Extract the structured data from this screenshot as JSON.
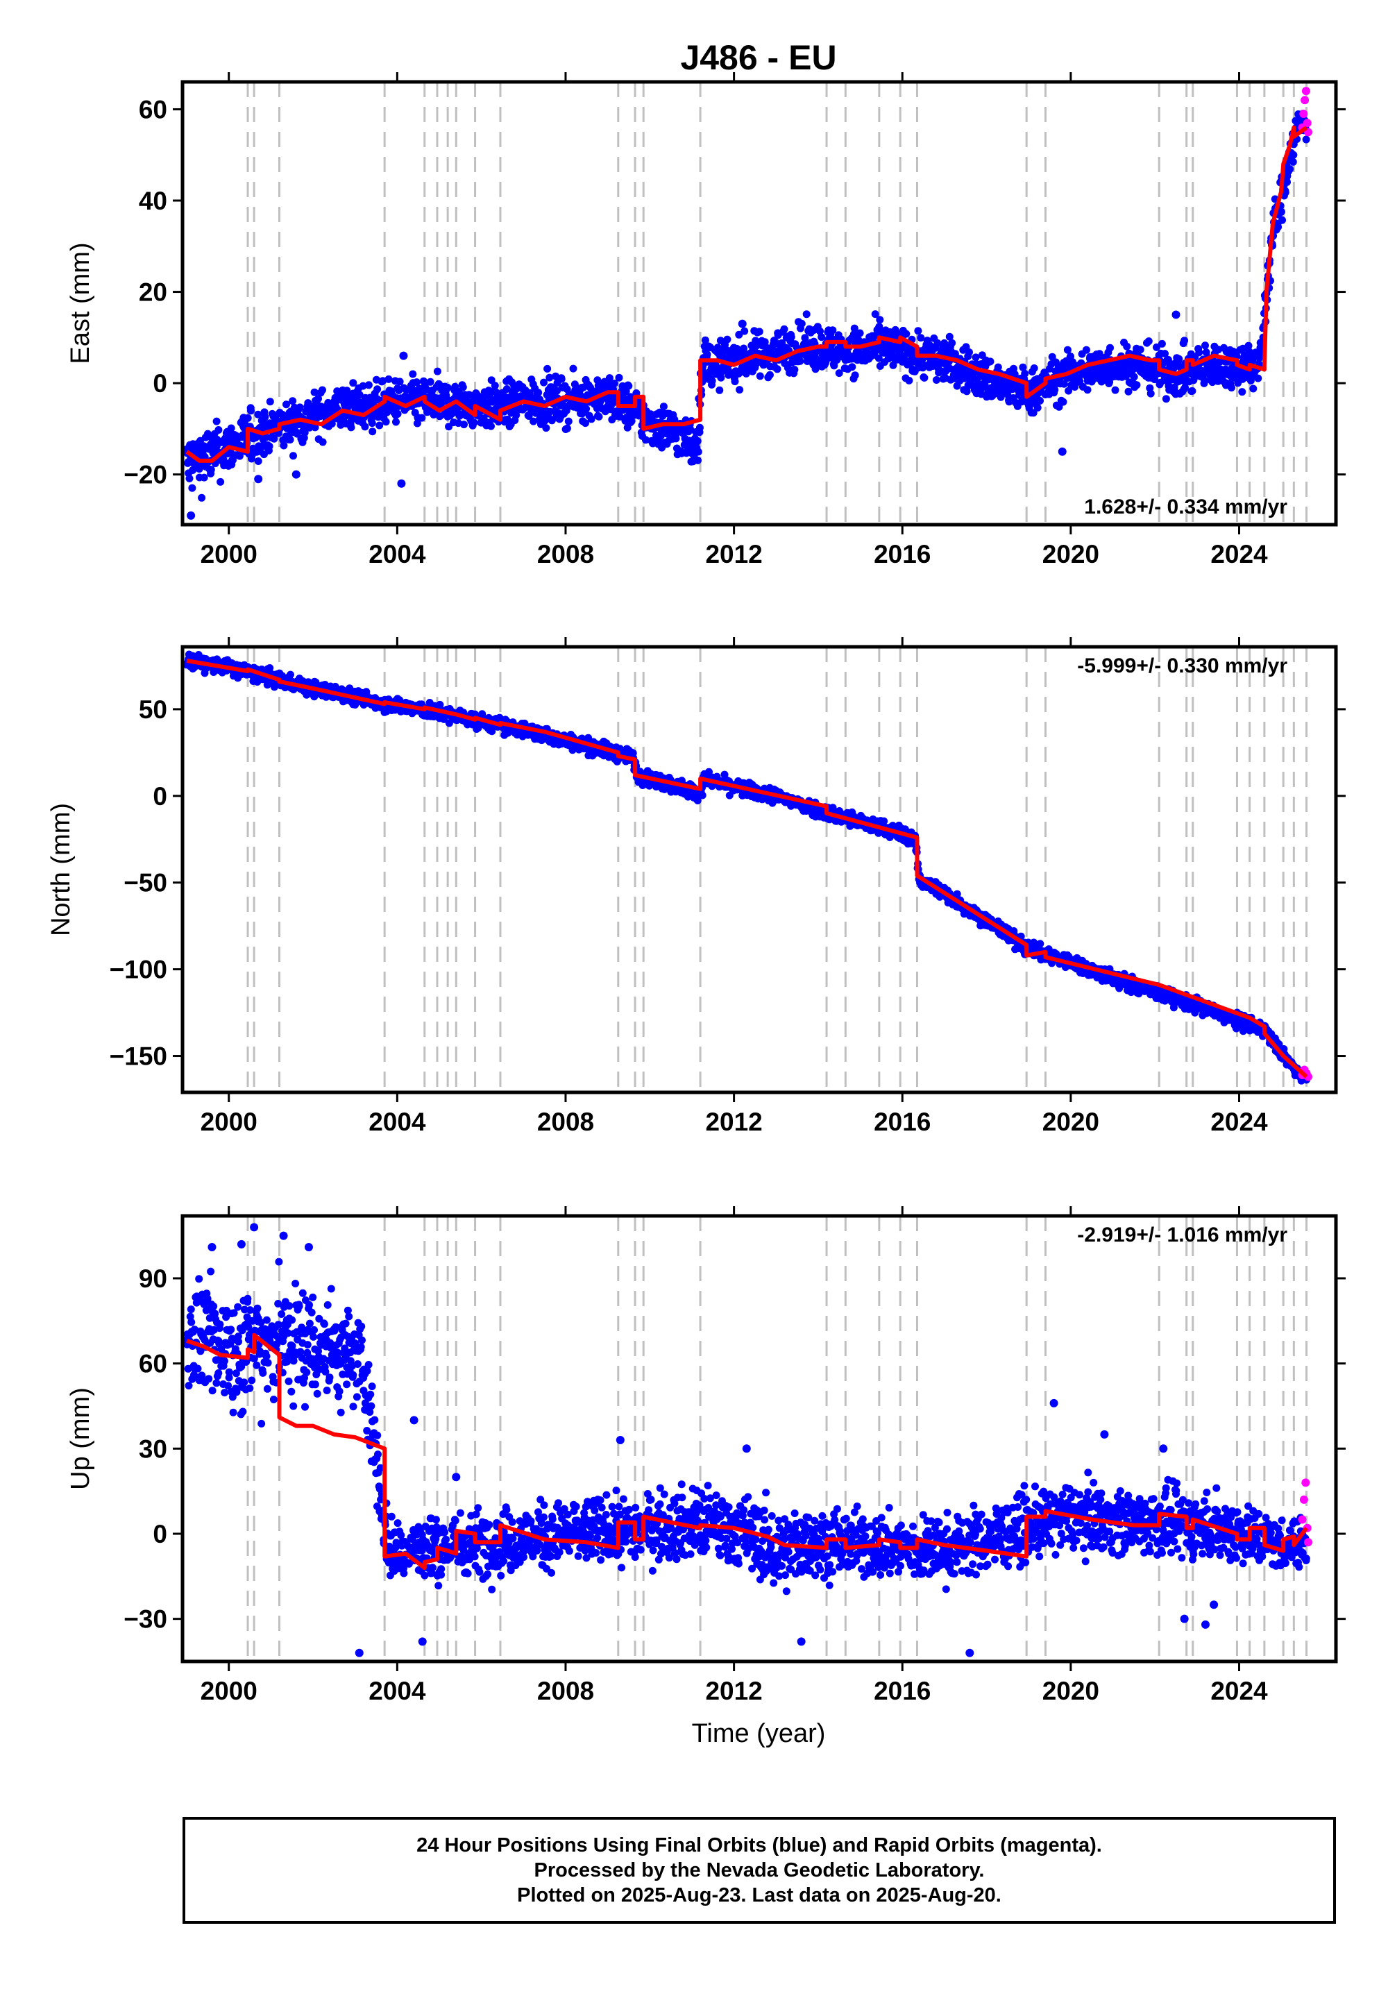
{
  "figure": {
    "title": "J486 - EU",
    "xlabel": "Time (year)",
    "caption": [
      "24 Hour Positions Using Final Orbits (blue) and Rapid Orbits (magenta).",
      "Processed by the Nevada Geodetic Laboratory.",
      "Plotted on 2025-Aug-23. Last data on 2025-Aug-20."
    ]
  },
  "colors": {
    "final": "#0000ff",
    "rapid": "#ff00ff",
    "model": "#ff0000",
    "event_lines": "#c0c0c0",
    "axes": "#000000"
  },
  "chart_data": [
    {
      "type": "scatter",
      "ylabel": "East (mm)",
      "rate_text": "1.628+/- 0.334 mm/yr",
      "rate_position": "bottom-right",
      "xlim": [
        1998.9,
        2026.3
      ],
      "ylim": [
        -31,
        66
      ],
      "x_ticks": [
        2000,
        2004,
        2008,
        2012,
        2016,
        2020,
        2024
      ],
      "y_ticks": [
        -20,
        0,
        20,
        40,
        60
      ],
      "event_years": [
        2000.45,
        2000.6,
        2001.2,
        2003.7,
        2004.65,
        2004.95,
        2005.2,
        2005.4,
        2005.85,
        2006.45,
        2009.25,
        2009.65,
        2009.85,
        2011.2,
        2014.2,
        2014.65,
        2015.45,
        2015.95,
        2016.35,
        2018.95,
        2019.4,
        2022.1,
        2022.75,
        2022.9,
        2023.95,
        2024.25,
        2024.6,
        2025.05,
        2025.3,
        2025.6
      ],
      "trend_series": {
        "name": "Final Orbits (blue)",
        "x": [
          1999.0,
          1999.5,
          2000.0,
          2000.5,
          2001.0,
          2001.5,
          2002.0,
          2002.5,
          2003.0,
          2003.5,
          2004.0,
          2004.5,
          2005.0,
          2005.5,
          2006.0,
          2006.5,
          2007.0,
          2007.5,
          2008.0,
          2008.5,
          2009.0,
          2009.5,
          2010.0,
          2010.5,
          2011.0,
          2011.15,
          2011.25,
          2011.5,
          2012.0,
          2012.5,
          2013.0,
          2013.5,
          2014.0,
          2014.5,
          2015.0,
          2015.5,
          2016.0,
          2016.5,
          2017.0,
          2017.5,
          2018.0,
          2018.5,
          2019.0,
          2019.5,
          2020.0,
          2020.5,
          2021.0,
          2021.5,
          2022.0,
          2022.5,
          2023.0,
          2023.5,
          2024.0,
          2024.5,
          2024.65,
          2024.8,
          2025.0,
          2025.2,
          2025.4,
          2025.6
        ],
        "y": [
          -18,
          -16,
          -14,
          -12,
          -10,
          -9,
          -7,
          -6,
          -5,
          -5,
          -4,
          -4,
          -4,
          -5,
          -5,
          -5,
          -4,
          -4,
          -4,
          -3,
          -3,
          -5,
          -9,
          -10,
          -13,
          -12,
          5,
          4,
          5,
          6,
          7,
          8,
          8,
          7,
          7,
          8,
          7,
          6,
          5,
          3,
          1,
          -1,
          -2,
          0,
          2,
          3,
          4,
          4,
          3,
          2,
          3,
          4,
          4,
          4,
          20,
          33,
          40,
          50,
          56,
          57
        ],
        "spread": [
          5,
          4.5,
          4,
          4,
          3.5,
          3.5,
          3.5,
          3.5,
          3.5,
          3.5,
          3.5,
          3.5,
          3.5,
          3.5,
          3.5,
          3.5,
          3.5,
          3.5,
          3.5,
          3.5,
          3.5,
          3.5,
          3.5,
          3.5,
          4,
          4,
          3.5,
          3.5,
          3.5,
          3.5,
          3.5,
          3.5,
          3.5,
          3.5,
          3.5,
          3.5,
          3.5,
          3.5,
          3.5,
          3.5,
          3.5,
          3.5,
          3.5,
          3.5,
          3.5,
          3.5,
          3.5,
          3.5,
          3.5,
          3.5,
          3.5,
          3.5,
          3.5,
          3.5,
          4,
          4,
          3.5,
          3,
          3,
          3
        ]
      },
      "outliers": [
        [
          1999.1,
          -29
        ],
        [
          2000.7,
          -21
        ],
        [
          2001.6,
          -20
        ],
        [
          2004.1,
          -22
        ],
        [
          2004.15,
          6
        ],
        [
          2012.2,
          13
        ],
        [
          2019.8,
          -15
        ],
        [
          2022.5,
          15
        ]
      ],
      "rapid_series": {
        "name": "Rapid Orbits (magenta)",
        "x": [
          2025.5,
          2025.53,
          2025.56,
          2025.59,
          2025.62,
          2025.64
        ],
        "y": [
          56,
          59,
          62,
          64,
          57,
          55
        ]
      },
      "model": {
        "x": [
          1999.0,
          1999.3,
          1999.6,
          2000.0,
          2000.45,
          2000.45,
          2000.8,
          2001.2,
          2001.2,
          2001.7,
          2002.2,
          2002.7,
          2003.2,
          2003.7,
          2003.7,
          2004.2,
          2004.65,
          2004.65,
          2005.0,
          2005.4,
          2005.85,
          2005.85,
          2006.45,
          2006.45,
          2007.0,
          2007.5,
          2008.0,
          2008.5,
          2009.0,
          2009.25,
          2009.25,
          2009.65,
          2009.65,
          2009.85,
          2009.85,
          2010.3,
          2010.8,
          2011.2,
          2011.2,
          2011.6,
          2012.0,
          2012.5,
          2013.0,
          2013.5,
          2014.0,
          2014.2,
          2014.2,
          2014.65,
          2014.65,
          2015.0,
          2015.45,
          2015.45,
          2015.95,
          2015.95,
          2016.35,
          2016.35,
          2016.8,
          2017.3,
          2017.8,
          2018.3,
          2018.95,
          2018.95,
          2019.4,
          2019.4,
          2019.9,
          2020.4,
          2020.9,
          2021.4,
          2021.9,
          2022.1,
          2022.1,
          2022.5,
          2022.75,
          2022.75,
          2022.9,
          2022.9,
          2023.4,
          2023.95,
          2023.95,
          2024.25,
          2024.25,
          2024.6,
          2024.6,
          2024.65,
          2024.8,
          2025.0,
          2025.05,
          2025.2,
          2025.3,
          2025.3,
          2025.6
        ],
        "y": [
          -15,
          -17,
          -17,
          -14,
          -15,
          -10,
          -11,
          -10,
          -9,
          -8,
          -9,
          -6,
          -7,
          -4,
          -3,
          -5,
          -3,
          -4,
          -6,
          -4,
          -7,
          -5,
          -8,
          -6,
          -4,
          -5,
          -3,
          -4,
          -2,
          -2,
          -5,
          -5,
          -3,
          -3,
          -10,
          -9,
          -9,
          -8,
          5,
          5,
          4,
          6,
          5,
          7,
          8,
          8,
          9,
          9,
          8,
          8,
          9,
          10,
          9,
          10,
          8,
          6,
          6,
          5,
          3,
          2,
          0,
          -3,
          0,
          1,
          2,
          4,
          5,
          6,
          5,
          5,
          3,
          2,
          3,
          5,
          5,
          4,
          6,
          5,
          4,
          3,
          4,
          3,
          4,
          20,
          35,
          42,
          48,
          52,
          56,
          54,
          56
        ]
      }
    },
    {
      "type": "scatter",
      "ylabel": "North (mm)",
      "rate_text": "-5.999+/- 0.330 mm/yr",
      "rate_position": "top-right",
      "xlim": [
        1998.9,
        2026.3
      ],
      "ylim": [
        -171,
        86
      ],
      "x_ticks": [
        2000,
        2004,
        2008,
        2012,
        2016,
        2020,
        2024
      ],
      "y_ticks": [
        -150,
        -100,
        -50,
        0,
        50
      ],
      "event_years": [
        2000.45,
        2000.6,
        2001.2,
        2003.7,
        2004.65,
        2004.95,
        2005.2,
        2005.4,
        2005.85,
        2006.45,
        2009.25,
        2009.65,
        2009.85,
        2011.2,
        2014.2,
        2014.65,
        2015.45,
        2015.95,
        2016.35,
        2018.95,
        2019.4,
        2022.1,
        2022.75,
        2022.9,
        2023.95,
        2024.25,
        2024.6,
        2025.05,
        2025.3,
        2025.6
      ],
      "trend_series": {
        "name": "Final Orbits (blue)",
        "x": [
          1999.0,
          2000.0,
          2001.0,
          2002.0,
          2003.0,
          2004.0,
          2005.0,
          2006.0,
          2007.0,
          2008.0,
          2009.0,
          2009.6,
          2009.7,
          2011.0,
          2011.2,
          2011.3,
          2012.0,
          2013.0,
          2014.0,
          2015.0,
          2016.0,
          2016.3,
          2016.4,
          2017.0,
          2018.0,
          2019.0,
          2020.0,
          2021.0,
          2022.0,
          2023.0,
          2024.0,
          2024.6,
          2025.0,
          2025.4,
          2025.6
        ],
        "y": [
          78,
          74,
          68,
          62,
          57,
          52,
          48,
          43,
          38,
          32,
          26,
          22,
          12,
          3,
          2,
          10,
          5,
          0,
          -8,
          -15,
          -22,
          -25,
          -48,
          -56,
          -72,
          -88,
          -96,
          -105,
          -113,
          -121,
          -130,
          -135,
          -148,
          -160,
          -163
        ],
        "spread": [
          3,
          3,
          3,
          3,
          3,
          3,
          3,
          3,
          3,
          3,
          3,
          3,
          3,
          3,
          3,
          3,
          3,
          3,
          3,
          3,
          3,
          3,
          3,
          3,
          3,
          3,
          3,
          3,
          3,
          3,
          3,
          3,
          2.5,
          2,
          2
        ]
      },
      "outliers": [],
      "rapid_series": {
        "name": "Rapid Orbits (magenta)",
        "x": [
          2025.5,
          2025.55,
          2025.6,
          2025.64
        ],
        "y": [
          -161,
          -158,
          -160,
          -162
        ]
      },
      "model": {
        "x": [
          1999.0,
          2000.45,
          2000.45,
          2001.2,
          2001.2,
          2002.0,
          2003.7,
          2003.7,
          2004.65,
          2004.65,
          2005.4,
          2005.85,
          2005.85,
          2006.45,
          2006.45,
          2007.5,
          2009.25,
          2009.25,
          2009.65,
          2009.65,
          2011.2,
          2011.2,
          2014.2,
          2014.2,
          2016.35,
          2016.35,
          2018.95,
          2018.95,
          2019.4,
          2019.4,
          2022.1,
          2024.25,
          2024.6,
          2024.6,
          2025.05,
          2025.6
        ],
        "y": [
          78,
          72,
          73,
          67,
          66,
          62,
          53,
          54,
          50,
          51,
          47,
          44,
          45,
          41,
          42,
          37,
          25,
          23,
          21,
          12,
          4,
          10,
          -6,
          -10,
          -24,
          -46,
          -86,
          -92,
          -90,
          -93,
          -109,
          -128,
          -133,
          -137,
          -150,
          -162
        ]
      }
    },
    {
      "type": "scatter",
      "ylabel": "Up (mm)",
      "rate_text": "-2.919+/- 1.016 mm/yr",
      "rate_position": "top-right",
      "xlim": [
        1998.9,
        2026.3
      ],
      "ylim": [
        -45,
        112
      ],
      "x_ticks": [
        2000,
        2004,
        2008,
        2012,
        2016,
        2020,
        2024
      ],
      "y_ticks": [
        -30,
        0,
        30,
        60,
        90
      ],
      "event_years": [
        2000.45,
        2000.6,
        2001.2,
        2003.7,
        2004.65,
        2004.95,
        2005.2,
        2005.4,
        2005.85,
        2006.45,
        2009.25,
        2009.65,
        2009.85,
        2011.2,
        2014.2,
        2014.65,
        2015.45,
        2015.95,
        2016.35,
        2018.95,
        2019.4,
        2022.1,
        2022.75,
        2022.9,
        2023.95,
        2024.25,
        2024.6,
        2025.05,
        2025.3,
        2025.6
      ],
      "trend_series": {
        "name": "Final Orbits (blue)",
        "x": [
          1999.0,
          2000.0,
          2001.0,
          2002.0,
          2003.0,
          2003.2,
          2003.8,
          2005.0,
          2006.0,
          2007.0,
          2008.0,
          2009.0,
          2010.0,
          2011.0,
          2012.0,
          2013.0,
          2014.0,
          2015.0,
          2016.0,
          2017.0,
          2018.0,
          2019.0,
          2020.0,
          2021.0,
          2022.0,
          2023.0,
          2024.0,
          2025.0,
          2025.6
        ],
        "y": [
          70,
          65,
          68,
          67,
          62,
          60,
          -6,
          -5,
          -3,
          -2,
          0,
          1,
          2,
          4,
          2,
          -6,
          -3,
          -4,
          -5,
          -6,
          -2,
          2,
          6,
          5,
          4,
          3,
          1,
          -4,
          -3
        ],
        "spread": [
          12,
          15,
          15,
          15,
          12,
          12,
          8,
          8,
          8,
          8,
          8,
          8,
          8,
          9,
          9,
          10,
          8,
          8,
          8,
          8,
          8,
          8,
          8,
          8,
          8,
          8,
          8,
          6,
          6
        ]
      },
      "outliers": [
        [
          2000.6,
          108
        ],
        [
          2000.3,
          102
        ],
        [
          2001.3,
          105
        ],
        [
          2001.9,
          101
        ],
        [
          1999.6,
          101
        ],
        [
          2003.1,
          -42
        ],
        [
          2004.4,
          40
        ],
        [
          2004.6,
          -38
        ],
        [
          2005.4,
          20
        ],
        [
          2009.3,
          33
        ],
        [
          2012.3,
          30
        ],
        [
          2013.6,
          -38
        ],
        [
          2017.6,
          -42
        ],
        [
          2019.6,
          46
        ],
        [
          2020.8,
          35
        ],
        [
          2022.2,
          30
        ],
        [
          2023.2,
          -32
        ],
        [
          2023.4,
          -25
        ],
        [
          2022.7,
          -30
        ]
      ],
      "rapid_series": {
        "name": "Rapid Orbits (magenta)",
        "x": [
          2025.5,
          2025.54,
          2025.58,
          2025.62,
          2025.64
        ],
        "y": [
          5,
          12,
          18,
          2,
          -3
        ]
      },
      "model": {
        "x": [
          1999.0,
          1999.4,
          1999.8,
          2000.45,
          2000.45,
          2000.6,
          2000.6,
          2001.2,
          2001.2,
          2001.6,
          2002.0,
          2002.5,
          2003.0,
          2003.7,
          2003.7,
          2004.2,
          2004.65,
          2004.65,
          2004.95,
          2004.95,
          2005.2,
          2005.4,
          2005.4,
          2005.85,
          2005.85,
          2006.45,
          2006.45,
          2007.5,
          2008.5,
          2009.25,
          2009.25,
          2009.65,
          2009.65,
          2009.85,
          2009.85,
          2010.5,
          2011.2,
          2011.2,
          2012.0,
          2012.8,
          2013.2,
          2014.2,
          2014.2,
          2014.65,
          2014.65,
          2015.45,
          2015.45,
          2015.95,
          2015.95,
          2016.35,
          2016.35,
          2017.0,
          2018.0,
          2018.95,
          2018.95,
          2019.4,
          2019.4,
          2020.5,
          2021.5,
          2022.1,
          2022.1,
          2022.75,
          2022.75,
          2022.9,
          2022.9,
          2023.95,
          2023.95,
          2024.25,
          2024.25,
          2024.6,
          2024.6,
          2025.05,
          2025.05,
          2025.3,
          2025.3,
          2025.6
        ],
        "y": [
          68,
          66,
          63,
          62,
          65,
          64,
          70,
          63,
          41,
          38,
          38,
          35,
          34,
          30,
          -8,
          -7,
          -12,
          -10,
          -9,
          -5,
          -6,
          -7,
          1,
          0,
          -3,
          -3,
          3,
          -2,
          -3,
          -5,
          4,
          4,
          -2,
          -2,
          6,
          4,
          2,
          3,
          2,
          -1,
          -4,
          -5,
          -2,
          -2,
          -5,
          -4,
          -2,
          -3,
          -5,
          -5,
          -2,
          -4,
          -6,
          -8,
          6,
          6,
          8,
          5,
          3,
          3,
          7,
          6,
          2,
          2,
          5,
          0,
          -2,
          -2,
          2,
          2,
          -4,
          -6,
          -2,
          -1,
          -4,
          2
        ]
      }
    }
  ]
}
